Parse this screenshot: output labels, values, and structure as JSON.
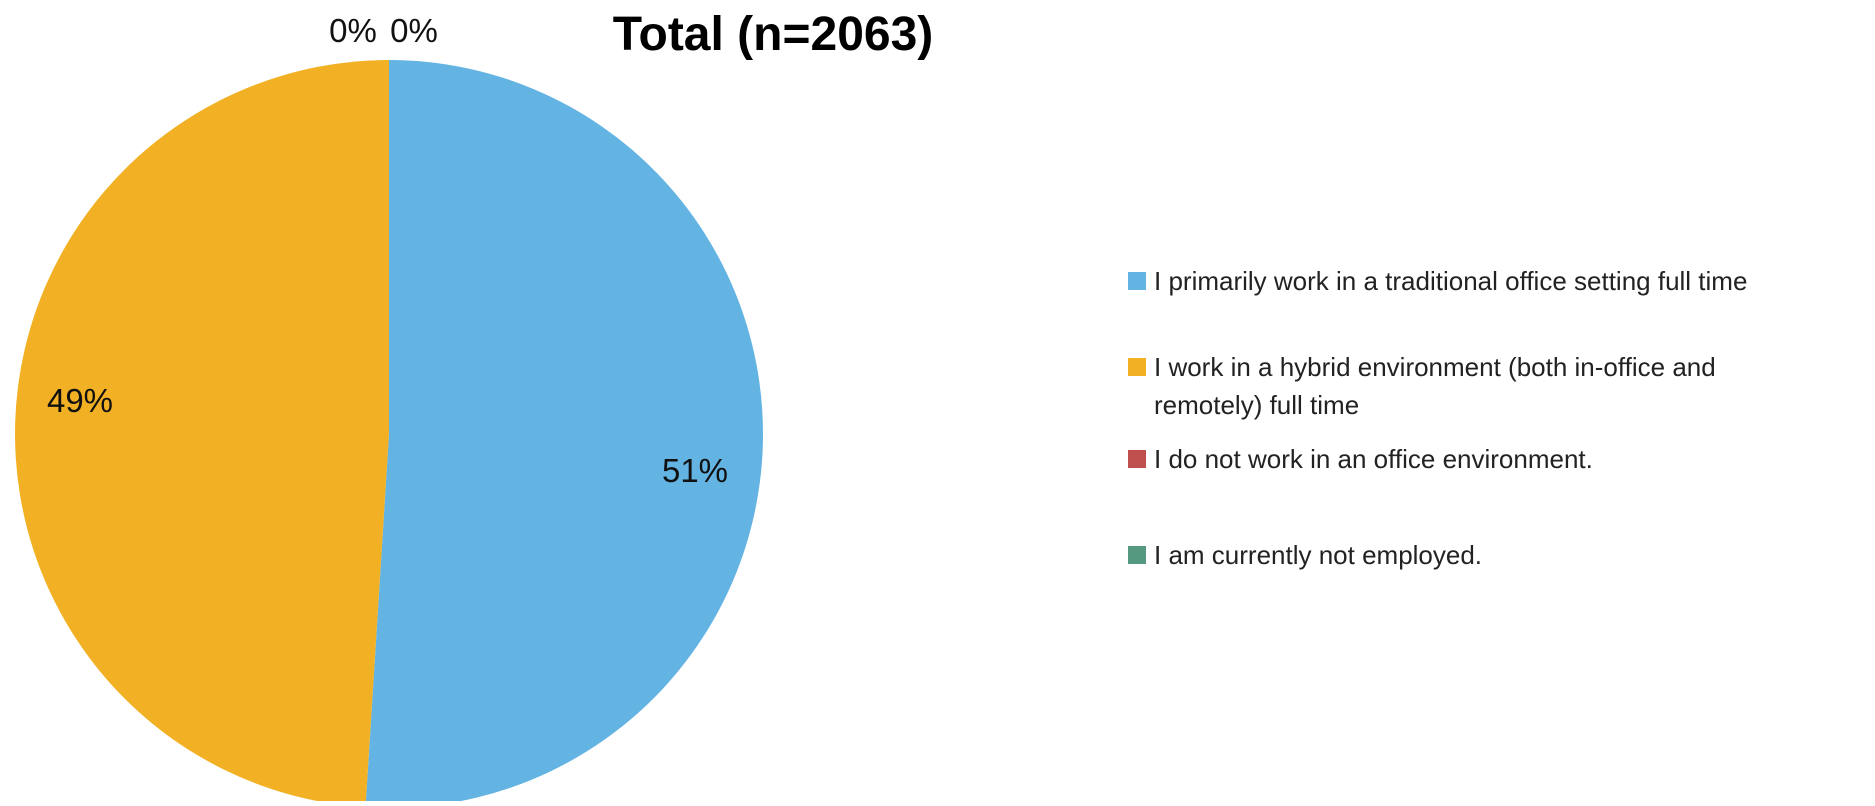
{
  "chart_data": {
    "type": "pie",
    "title": "Total (n=2063)",
    "slices": [
      {
        "label": "I primarily work in a traditional office setting full time",
        "value": 51,
        "data_label": "51%",
        "color": "#63B3E3"
      },
      {
        "label": "I work in a hybrid environment (both in-office and remotely) full time",
        "value": 49,
        "data_label": "49%",
        "color": "#F2B124"
      },
      {
        "label": "I do not work in an office environment.",
        "value": 0,
        "data_label": "0%",
        "color": "#C0504D"
      },
      {
        "label": "I am currently not employed.",
        "value": 0,
        "data_label": "0%",
        "color": "#559A80"
      }
    ],
    "legend_position": "right"
  }
}
